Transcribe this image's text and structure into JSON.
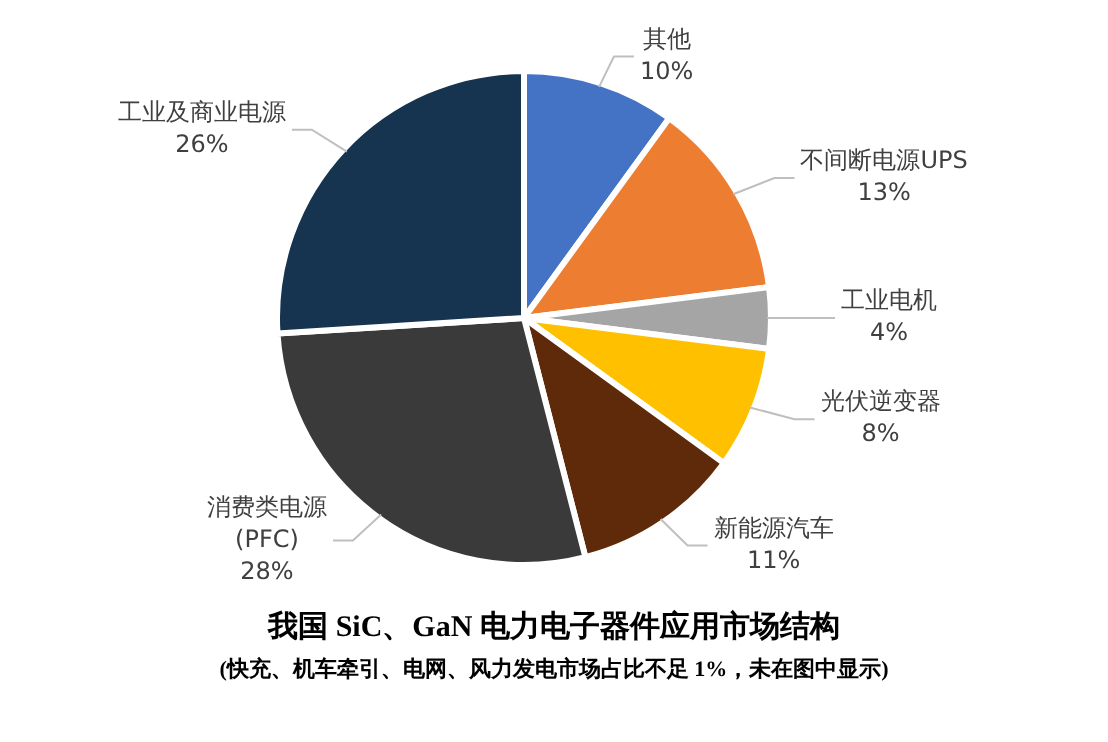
{
  "chart_data": {
    "type": "pie",
    "title": "我国 SiC、GaN 电力电子器件应用市场结构",
    "subtitle": "(快充、机车牵引、电网、风力发电市场占比不足 1%，未在图中显示)",
    "categories": [
      "其他",
      "不间断电源UPS",
      "工业电机",
      "光伏逆变器",
      "新能源汽车",
      "消费类电源 (PFC)",
      "工业及商业电源"
    ],
    "values": [
      10,
      13,
      4,
      8,
      11,
      28,
      26
    ],
    "value_labels": [
      "10%",
      "13%",
      "4%",
      "8%",
      "11%",
      "28%",
      "26%"
    ],
    "colors": [
      "#4472c4",
      "#ed7d31",
      "#a5a5a5",
      "#ffc000",
      "#5e2a0a",
      "#3a3a3a",
      "#163350"
    ],
    "legend": false
  }
}
